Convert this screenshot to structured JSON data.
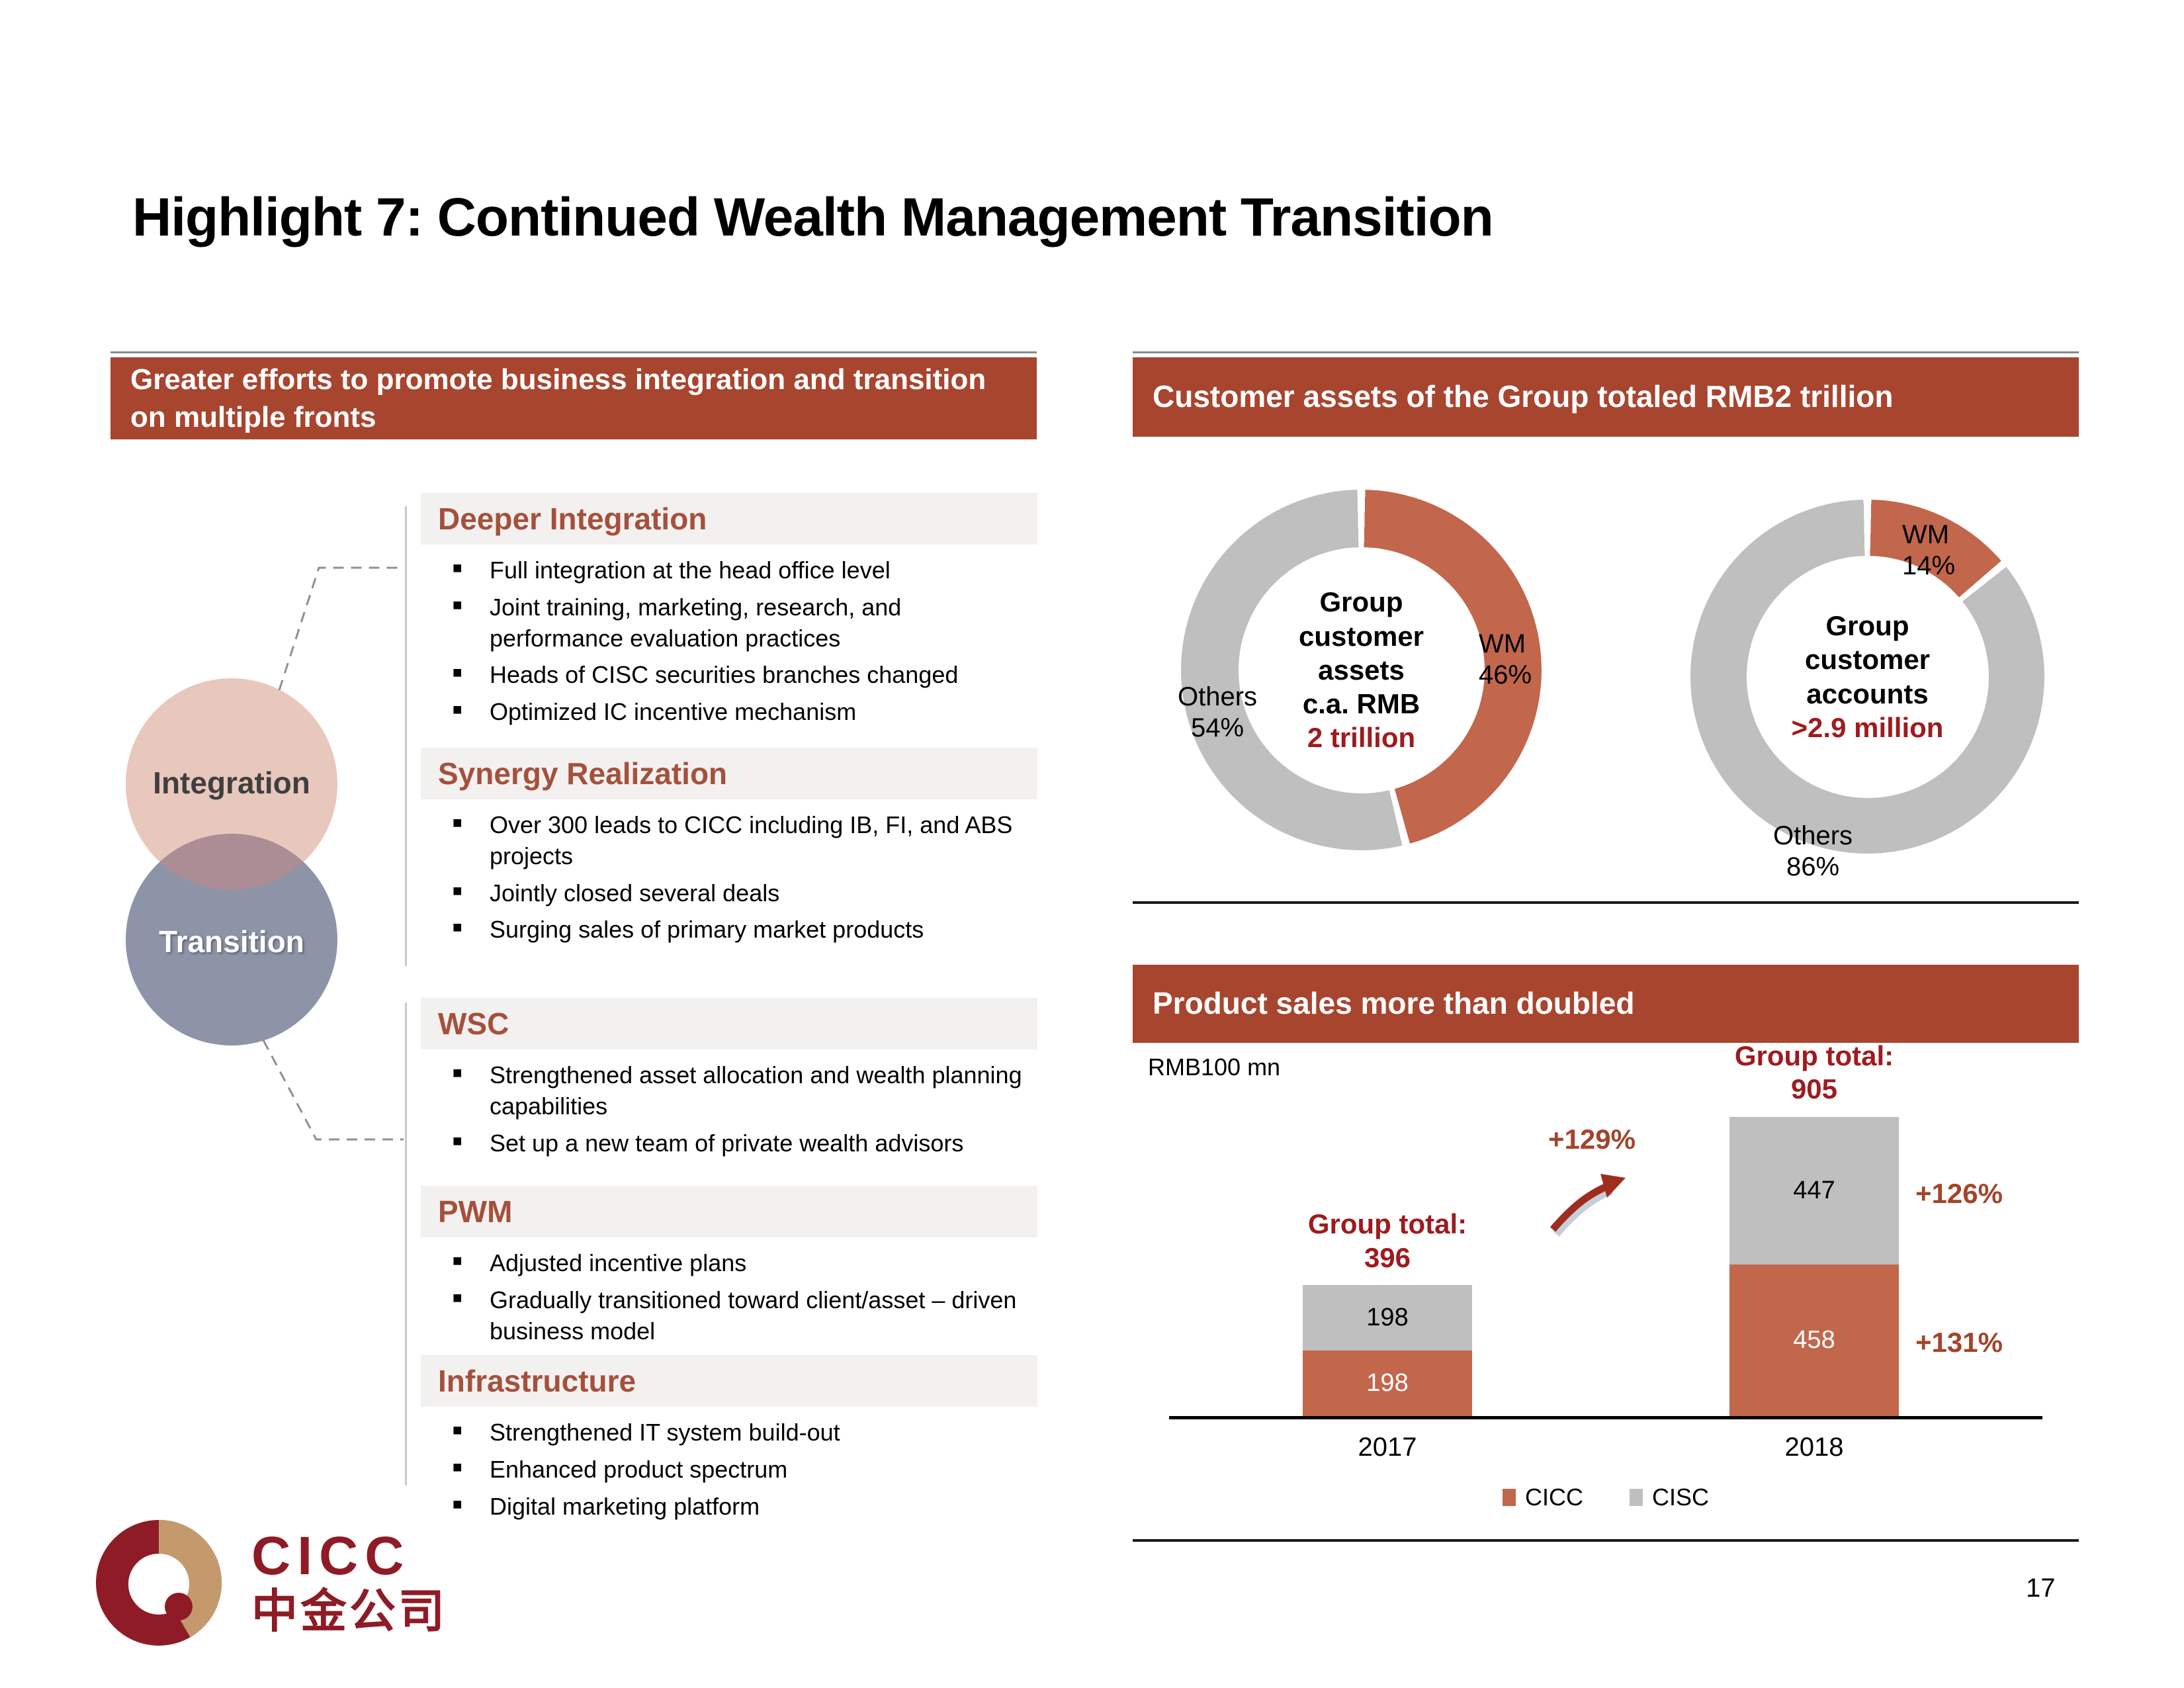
{
  "slide": {
    "title": "Highlight 7: Continued Wealth Management Transition",
    "page_number": "17"
  },
  "colors": {
    "header_red": "#A8452F",
    "accent_dark_red": "#9E1B1E",
    "growth_red": "#A3442B",
    "orange": "#C2664C",
    "gray": "#BFBFBF",
    "section_heading_red": "#A5503C",
    "venn_pink": "#E8C7BD",
    "venn_blue": "#8D94A8",
    "venn_overlap": "#AC8C95",
    "logo_maroon": "#8F1B26",
    "logo_gold": "#C49A6C"
  },
  "left_panel": {
    "header": "Greater efforts to promote business integration and transition on multiple fronts",
    "venn": {
      "integration": "Integration",
      "transition": "Transition"
    },
    "sections": [
      {
        "heading": "Deeper Integration",
        "bullets": [
          "Full integration at the head office level",
          "Joint training, marketing, research, and performance evaluation practices",
          "Heads of CISC securities branches changed",
          "Optimized IC incentive mechanism"
        ]
      },
      {
        "heading": "Synergy Realization",
        "bullets": [
          "Over 300 leads to CICC including IB, FI, and ABS projects",
          "Jointly closed several deals",
          "Surging sales of primary market products"
        ]
      },
      {
        "heading": "WSC",
        "bullets": [
          "Strengthened asset allocation and wealth planning capabilities",
          "Set up a new team of private wealth advisors"
        ]
      },
      {
        "heading": "PWM",
        "bullets": [
          "Adjusted incentive plans",
          "Gradually transitioned toward client/asset – driven business model"
        ]
      },
      {
        "heading": "Infrastructure",
        "bullets": [
          "Strengthened IT system build-out",
          "Enhanced product spectrum",
          "Digital marketing platform"
        ]
      }
    ]
  },
  "right_panel": {
    "assets_header": "Customer assets of the Group totaled RMB2 trillion",
    "sales_header": "Product sales more than doubled"
  },
  "chart_data": [
    {
      "type": "pie",
      "variant": "donut",
      "title": "Group customer assets c.a. RMB 2 trillion",
      "center_lines": [
        "Group",
        "customer",
        "assets",
        "c.a. RMB"
      ],
      "center_highlight": "2 trillion",
      "slices": [
        {
          "label": "WM",
          "value": 46,
          "pct": "46%",
          "color": "#C2664C"
        },
        {
          "label": "Others",
          "value": 54,
          "pct": "54%",
          "color": "#BFBFBF"
        }
      ],
      "legend_position": "none"
    },
    {
      "type": "pie",
      "variant": "donut",
      "title": "Group customer accounts >2.9 million",
      "center_lines": [
        "Group",
        "customer",
        "accounts"
      ],
      "center_highlight": ">2.9 million",
      "slices": [
        {
          "label": "WM",
          "value": 14,
          "pct": "14%",
          "color": "#C2664C"
        },
        {
          "label": "Others",
          "value": 86,
          "pct": "86%",
          "color": "#BFBFBF"
        }
      ],
      "legend_position": "none"
    },
    {
      "type": "bar",
      "stacked": true,
      "title": "Product sales more than doubled",
      "unit": "RMB100 mn",
      "categories": [
        "2017",
        "2018"
      ],
      "series": [
        {
          "name": "CICC",
          "color": "#C2664C",
          "values": [
            198,
            458
          ]
        },
        {
          "name": "CISC",
          "color": "#BFBFBF",
          "values": [
            198,
            447
          ]
        }
      ],
      "group_total_label": "Group total:",
      "group_totals": [
        396,
        905
      ],
      "growth_total": "+129%",
      "growth_by_series": {
        "CISC": "+126%",
        "CICC": "+131%"
      },
      "legend": [
        "CICC",
        "CISC"
      ],
      "legend_position": "bottom",
      "grid": false
    }
  ],
  "logo": {
    "latin": "CICC",
    "chinese": "中金公司"
  }
}
